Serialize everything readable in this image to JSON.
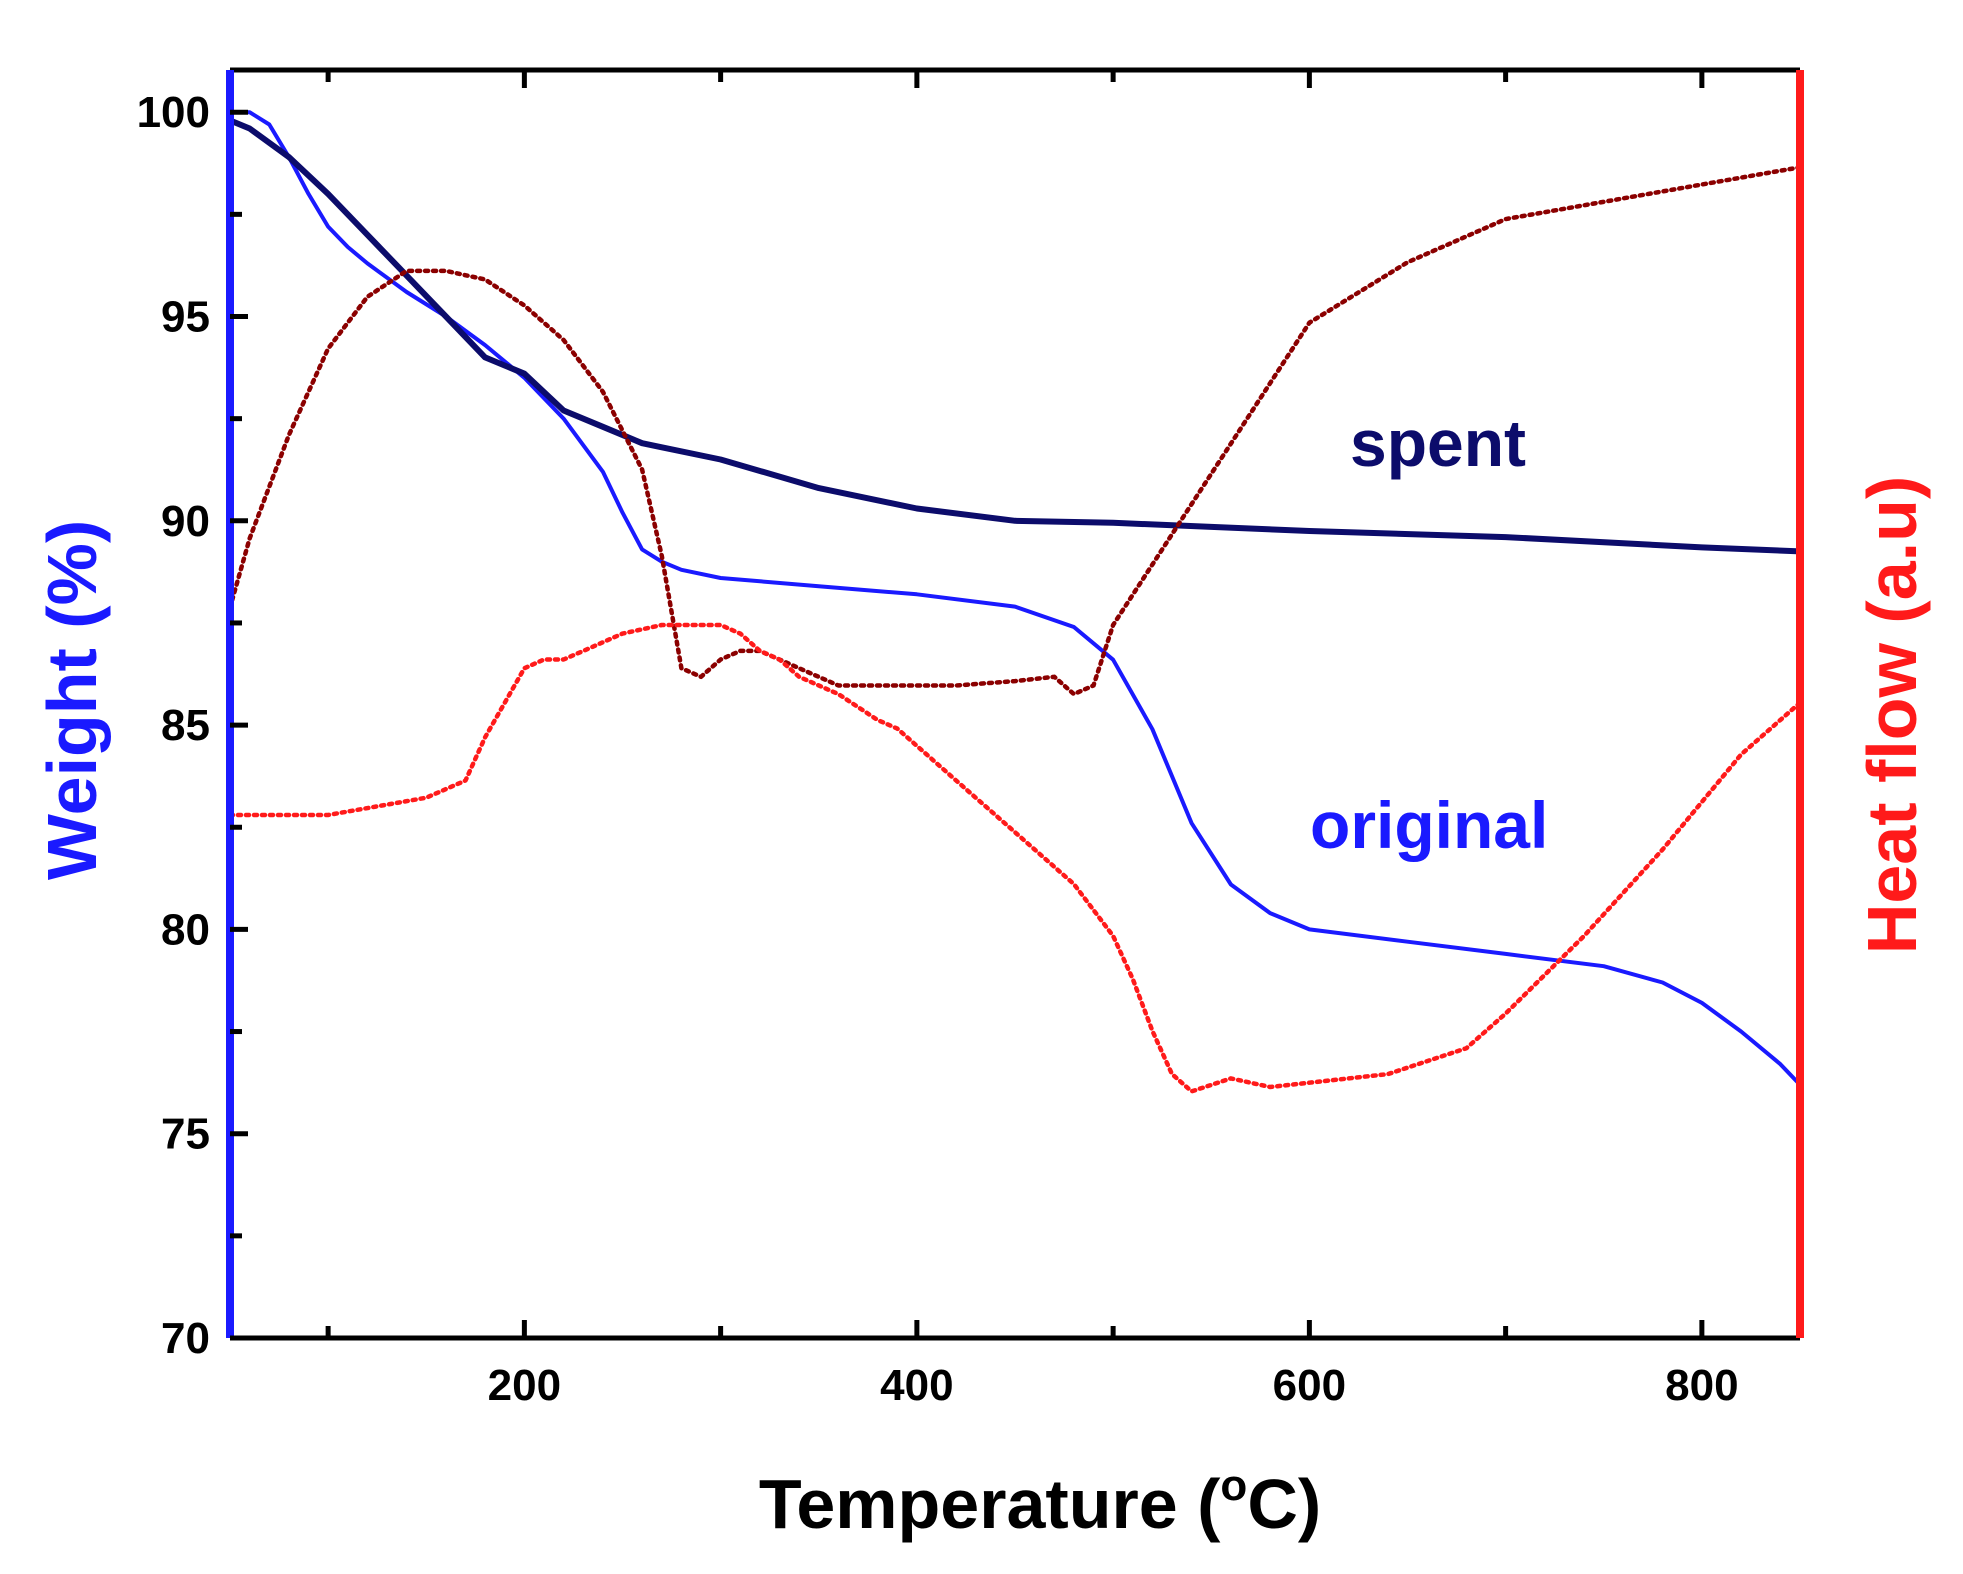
{
  "chart_data": {
    "type": "line",
    "title": "",
    "xlabel": "Temperature (",
    "xlabel_sup": "o",
    "xlabel_end": "C)",
    "ylabel_left": "Weight (%)",
    "ylabel_right": "Heat flow (a.u)",
    "xlim": [
      50,
      850
    ],
    "ylim": [
      70,
      101
    ],
    "x_ticks": [
      200,
      400,
      600,
      800
    ],
    "y_ticks": [
      70,
      75,
      80,
      85,
      90,
      95,
      100
    ],
    "heatflow_range": [
      0,
      100
    ],
    "series": [
      {
        "name": "original",
        "axis": "weight",
        "label": "original",
        "color": "#1a1aff",
        "style": "solid",
        "x": [
          50,
          60,
          70,
          80,
          90,
          100,
          110,
          120,
          140,
          160,
          180,
          200,
          220,
          240,
          250,
          260,
          270,
          280,
          300,
          350,
          400,
          450,
          480,
          500,
          520,
          540,
          560,
          580,
          600,
          650,
          700,
          750,
          780,
          800,
          820,
          840,
          850
        ],
        "y": [
          100.0,
          100.0,
          99.7,
          98.9,
          98.0,
          97.2,
          96.7,
          96.3,
          95.6,
          95.0,
          94.3,
          93.5,
          92.5,
          91.2,
          90.2,
          89.3,
          89.0,
          88.8,
          88.6,
          88.4,
          88.2,
          87.9,
          87.4,
          86.6,
          84.9,
          82.6,
          81.1,
          80.4,
          80.0,
          79.7,
          79.4,
          79.1,
          78.7,
          78.2,
          77.5,
          76.7,
          76.2
        ]
      },
      {
        "name": "spent",
        "axis": "weight",
        "label": "spent",
        "color": "#0c0c6b",
        "style": "solid",
        "x": [
          50,
          60,
          80,
          100,
          120,
          140,
          160,
          180,
          200,
          220,
          240,
          260,
          270,
          300,
          350,
          400,
          450,
          500,
          550,
          600,
          700,
          800,
          850
        ],
        "y": [
          99.8,
          99.6,
          98.9,
          98.0,
          97.0,
          96.0,
          95.0,
          94.0,
          93.6,
          92.7,
          92.3,
          91.9,
          91.8,
          91.5,
          90.8,
          90.3,
          90.0,
          89.95,
          89.85,
          89.75,
          89.6,
          89.35,
          89.25
        ]
      },
      {
        "name": "heat-flow-spent",
        "axis": "heatflow",
        "label": "",
        "color": "#8b0000",
        "style": "dotted",
        "x": [
          50,
          60,
          80,
          100,
          120,
          140,
          160,
          180,
          200,
          220,
          240,
          260,
          270,
          280,
          290,
          300,
          310,
          320,
          340,
          360,
          380,
          400,
          420,
          450,
          470,
          480,
          490,
          500,
          520,
          540,
          560,
          580,
          600,
          650,
          700,
          750,
          800,
          850
        ],
        "y": [
          27,
          35,
          47,
          57,
          63,
          66,
          66,
          65,
          62,
          58,
          52,
          43,
          33,
          20,
          19,
          21,
          22,
          22,
          20,
          18,
          18,
          18,
          18,
          18.5,
          19,
          17,
          18,
          25,
          32,
          39,
          46,
          53,
          60,
          67,
          72,
          74,
          76,
          78
        ]
      },
      {
        "name": "heat-flow-original",
        "axis": "heatflow",
        "label": "",
        "color": "#ff1a1a",
        "style": "dotted",
        "x": [
          50,
          100,
          150,
          170,
          180,
          200,
          210,
          220,
          230,
          250,
          270,
          290,
          300,
          310,
          320,
          330,
          340,
          360,
          380,
          390,
          400,
          420,
          440,
          460,
          480,
          500,
          510,
          520,
          530,
          540,
          560,
          580,
          600,
          640,
          680,
          700,
          740,
          780,
          820,
          850
        ],
        "y": [
          3,
          3,
          5,
          7,
          12,
          20,
          21,
          21,
          22,
          24,
          25,
          25,
          25,
          24,
          22,
          21,
          19,
          17,
          14,
          13,
          11,
          7,
          3,
          -1,
          -5,
          -11,
          -16,
          -22,
          -27,
          -29,
          -27.5,
          -28.5,
          -28,
          -27,
          -24,
          -20,
          -11,
          -1,
          10,
          16
        ]
      }
    ]
  }
}
